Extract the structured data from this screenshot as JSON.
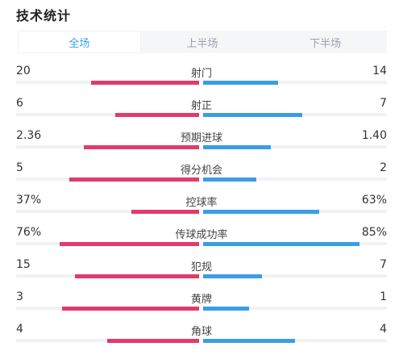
{
  "header": {
    "title": "技术统计"
  },
  "tabs": [
    {
      "label": "全场",
      "active": true
    },
    {
      "label": "上半场",
      "active": false
    },
    {
      "label": "下半场",
      "active": false
    }
  ],
  "colors": {
    "home_bar": "#e23a6b",
    "away_bar": "#3a9de6",
    "active_tab": "#3aa0e8"
  },
  "stats": [
    {
      "label": "射门",
      "home": "20",
      "away": "14",
      "home_fill": 0.59,
      "away_fill": 0.41
    },
    {
      "label": "射正",
      "home": "6",
      "away": "7",
      "home_fill": 0.46,
      "away_fill": 0.54
    },
    {
      "label": "预期进球",
      "home": "2.36",
      "away": "1.40",
      "home_fill": 0.63,
      "away_fill": 0.37
    },
    {
      "label": "得分机会",
      "home": "5",
      "away": "2",
      "home_fill": 0.71,
      "away_fill": 0.29
    },
    {
      "label": "控球率",
      "home": "37%",
      "away": "63%",
      "home_fill": 0.37,
      "away_fill": 0.63
    },
    {
      "label": "传球成功率",
      "home": "76%",
      "away": "85%",
      "home_fill": 0.76,
      "away_fill": 0.85
    },
    {
      "label": "犯规",
      "home": "15",
      "away": "7",
      "home_fill": 0.68,
      "away_fill": 0.32
    },
    {
      "label": "黄牌",
      "home": "3",
      "away": "1",
      "home_fill": 0.75,
      "away_fill": 0.25
    },
    {
      "label": "角球",
      "home": "4",
      "away": "4",
      "home_fill": 0.5,
      "away_fill": 0.5
    }
  ]
}
